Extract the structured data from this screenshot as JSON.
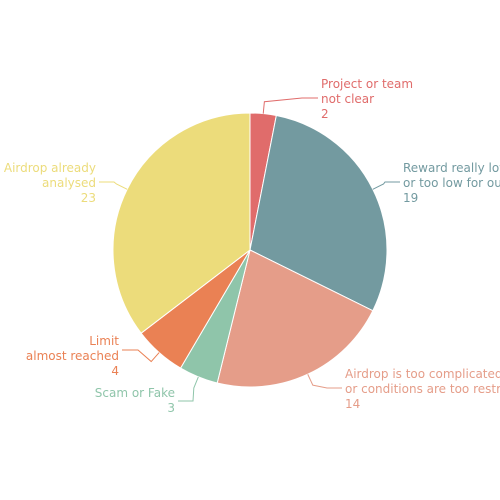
{
  "chart_data": {
    "type": "pie",
    "slices": [
      {
        "label_lines": [
          "Project or team",
          "not clear"
        ],
        "value": 2,
        "value_label": "2",
        "color": "#e06c6b"
      },
      {
        "label_lines": [
          "Reward really low",
          "or too low for ou"
        ],
        "value": 19,
        "value_label": "19",
        "color": "#739aa0"
      },
      {
        "label_lines": [
          "Airdrop is too complicated",
          "or conditions are too restr"
        ],
        "value": 14,
        "value_label": "14",
        "color": "#e59d89"
      },
      {
        "label_lines": [
          "Scam or Fake"
        ],
        "value": 3,
        "value_label": "3",
        "color": "#8fc5aa"
      },
      {
        "label_lines": [
          "Limit",
          "almost reached"
        ],
        "value": 4,
        "value_label": "4",
        "color": "#ea8154"
      },
      {
        "label_lines": [
          "Airdrop already",
          "analysed"
        ],
        "value": 23,
        "value_label": "23",
        "color": "#ecdc7b"
      }
    ],
    "start": "top",
    "direction": "clockwise",
    "legend": "none"
  }
}
